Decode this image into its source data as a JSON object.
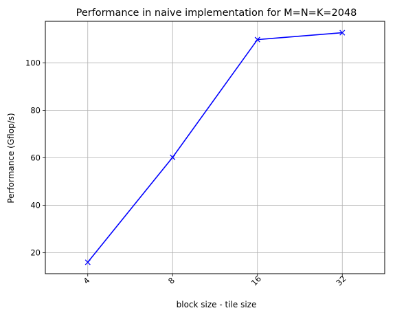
{
  "chart_data": {
    "type": "line",
    "title": "Performance in naive implementation for M=N=K=2048",
    "xlabel": "block size - tile size",
    "ylabel": "Performance (Gflop/s)",
    "categories": [
      "4",
      "8",
      "16",
      "32"
    ],
    "series": [
      {
        "values": [
          16.0,
          60.2,
          109.8,
          112.7
        ],
        "color": "#0000ff",
        "marker": "x"
      }
    ],
    "ylim": [
      11.2,
      117.5
    ],
    "yticks": [
      20,
      40,
      60,
      80,
      100
    ],
    "grid": true,
    "xtick_rotation": 45
  }
}
